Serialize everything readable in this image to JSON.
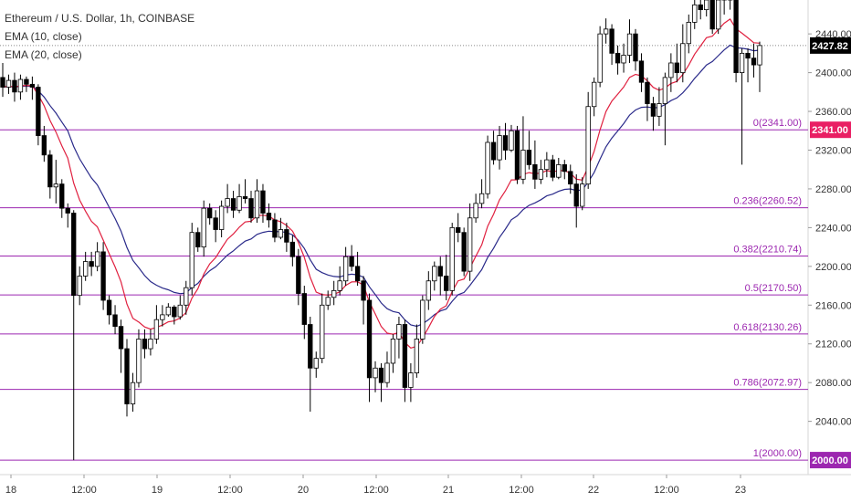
{
  "legend": {
    "title": "Ethereum / U.S. Dollar, 1h, COINBASE",
    "ema10": "EMA (10, close)",
    "ema20": "EMA (20, close)"
  },
  "colors": {
    "up": "#ffffff",
    "down": "#000000",
    "wick": "#000000",
    "ema10": "#e0203f",
    "ema20": "#2a2a8a",
    "fib": "#9c27b0",
    "fib_label_bg": "#ffffff",
    "last_price_bg": "#000000",
    "fib0_bg": "#e91e63"
  },
  "y_axis": {
    "ticks": [
      "2440.00",
      "2400.00",
      "2360.00",
      "2320.00",
      "2280.00",
      "2240.00",
      "2200.00",
      "2160.00",
      "2120.00",
      "2080.00",
      "2040.00"
    ],
    "range": [
      1985,
      2475
    ]
  },
  "x_axis": {
    "ticks": [
      "18",
      "12:00",
      "19",
      "12:00",
      "20",
      "12:00",
      "21",
      "12:00",
      "22",
      "12:00",
      "23"
    ]
  },
  "price_tags": {
    "last": "2427.82",
    "fib0": "2341.00",
    "fib1": "2000.00"
  },
  "chart_data": {
    "type": "candlestick",
    "fib_levels": [
      {
        "label": "0(2341.00)",
        "value": 2341.0
      },
      {
        "label": "0.236(2260.52)",
        "value": 2260.52
      },
      {
        "label": "0.382(2210.74)",
        "value": 2210.74
      },
      {
        "label": "0.5(2170.50)",
        "value": 2170.5
      },
      {
        "label": "0.618(2130.26)",
        "value": 2130.26
      },
      {
        "label": "0.786(2072.97)",
        "value": 2072.97
      },
      {
        "label": "1(2000.00)",
        "value": 2000.0
      }
    ],
    "candles": [
      [
        2395,
        2385,
        2410,
        2375
      ],
      [
        2385,
        2392,
        2398,
        2378
      ],
      [
        2392,
        2380,
        2400,
        2370
      ],
      [
        2380,
        2393,
        2398,
        2372
      ],
      [
        2393,
        2388,
        2396,
        2380
      ],
      [
        2388,
        2385,
        2396,
        2372
      ],
      [
        2385,
        2335,
        2388,
        2325
      ],
      [
        2335,
        2315,
        2345,
        2308
      ],
      [
        2315,
        2282,
        2320,
        2270
      ],
      [
        2282,
        2285,
        2310,
        2265
      ],
      [
        2285,
        2260,
        2290,
        2250
      ],
      [
        2260,
        2255,
        2265,
        2240
      ],
      [
        2255,
        2170,
        2258,
        2000
      ],
      [
        2170,
        2190,
        2200,
        2160
      ],
      [
        2190,
        2205,
        2215,
        2185
      ],
      [
        2205,
        2200,
        2215,
        2190
      ],
      [
        2200,
        2215,
        2225,
        2195
      ],
      [
        2215,
        2165,
        2225,
        2155
      ],
      [
        2165,
        2150,
        2170,
        2140
      ],
      [
        2150,
        2138,
        2160,
        2130
      ],
      [
        2138,
        2115,
        2145,
        2090
      ],
      [
        2115,
        2058,
        2125,
        2045
      ],
      [
        2058,
        2080,
        2090,
        2050
      ],
      [
        2080,
        2125,
        2135,
        2075
      ],
      [
        2125,
        2115,
        2135,
        2105
      ],
      [
        2115,
        2125,
        2135,
        2108
      ],
      [
        2125,
        2145,
        2160,
        2120
      ],
      [
        2145,
        2150,
        2160,
        2138
      ],
      [
        2150,
        2158,
        2162,
        2148
      ],
      [
        2158,
        2148,
        2160,
        2140
      ],
      [
        2148,
        2160,
        2170,
        2145
      ],
      [
        2160,
        2178,
        2185,
        2150
      ],
      [
        2178,
        2235,
        2245,
        2170
      ],
      [
        2235,
        2220,
        2240,
        2215
      ],
      [
        2220,
        2260,
        2268,
        2210
      ],
      [
        2260,
        2250,
        2265,
        2243
      ],
      [
        2250,
        2238,
        2258,
        2225
      ],
      [
        2238,
        2262,
        2268,
        2230
      ],
      [
        2262,
        2270,
        2285,
        2255
      ],
      [
        2270,
        2258,
        2278,
        2250
      ],
      [
        2258,
        2272,
        2285,
        2255
      ],
      [
        2272,
        2270,
        2290,
        2265
      ],
      [
        2270,
        2250,
        2278,
        2245
      ],
      [
        2250,
        2278,
        2290,
        2245
      ],
      [
        2278,
        2255,
        2285,
        2245
      ],
      [
        2255,
        2248,
        2265,
        2240
      ],
      [
        2248,
        2230,
        2255,
        2225
      ],
      [
        2230,
        2238,
        2250,
        2228
      ],
      [
        2238,
        2225,
        2245,
        2215
      ],
      [
        2225,
        2210,
        2232,
        2200
      ],
      [
        2210,
        2172,
        2218,
        2160
      ],
      [
        2172,
        2140,
        2180,
        2125
      ],
      [
        2140,
        2095,
        2148,
        2050
      ],
      [
        2095,
        2105,
        2112,
        2085
      ],
      [
        2105,
        2160,
        2172,
        2100
      ],
      [
        2160,
        2168,
        2175,
        2155
      ],
      [
        2168,
        2175,
        2185,
        2160
      ],
      [
        2175,
        2185,
        2200,
        2170
      ],
      [
        2185,
        2210,
        2220,
        2180
      ],
      [
        2210,
        2200,
        2222,
        2195
      ],
      [
        2200,
        2185,
        2215,
        2180
      ],
      [
        2185,
        2165,
        2190,
        2140
      ],
      [
        2165,
        2085,
        2172,
        2060
      ],
      [
        2085,
        2095,
        2102,
        2070
      ],
      [
        2095,
        2080,
        2100,
        2060
      ],
      [
        2080,
        2100,
        2112,
        2075
      ],
      [
        2100,
        2125,
        2130,
        2090
      ],
      [
        2125,
        2140,
        2148,
        2105
      ],
      [
        2140,
        2075,
        2145,
        2060
      ],
      [
        2075,
        2090,
        2100,
        2060
      ],
      [
        2090,
        2125,
        2140,
        2085
      ],
      [
        2125,
        2165,
        2170,
        2120
      ],
      [
        2165,
        2185,
        2195,
        2155
      ],
      [
        2185,
        2200,
        2205,
        2175
      ],
      [
        2200,
        2190,
        2210,
        2170
      ],
      [
        2190,
        2175,
        2212,
        2165
      ],
      [
        2175,
        2240,
        2245,
        2170
      ],
      [
        2240,
        2235,
        2255,
        2225
      ],
      [
        2235,
        2195,
        2240,
        2190
      ],
      [
        2195,
        2250,
        2265,
        2185
      ],
      [
        2250,
        2265,
        2275,
        2245
      ],
      [
        2265,
        2275,
        2290,
        2260
      ],
      [
        2275,
        2328,
        2335,
        2270
      ],
      [
        2328,
        2310,
        2340,
        2305
      ],
      [
        2310,
        2335,
        2345,
        2300
      ],
      [
        2335,
        2320,
        2348,
        2310
      ],
      [
        2320,
        2340,
        2346,
        2318
      ],
      [
        2340,
        2290,
        2345,
        2285
      ],
      [
        2290,
        2320,
        2355,
        2285
      ],
      [
        2320,
        2305,
        2340,
        2300
      ],
      [
        2305,
        2290,
        2330,
        2280
      ],
      [
        2290,
        2300,
        2310,
        2285
      ],
      [
        2300,
        2310,
        2318,
        2292
      ],
      [
        2310,
        2292,
        2315,
        2288
      ],
      [
        2292,
        2305,
        2312,
        2290
      ],
      [
        2305,
        2298,
        2310,
        2290
      ],
      [
        2298,
        2285,
        2305,
        2275
      ],
      [
        2285,
        2262,
        2295,
        2240
      ],
      [
        2262,
        2285,
        2292,
        2258
      ],
      [
        2285,
        2365,
        2380,
        2280
      ],
      [
        2365,
        2390,
        2395,
        2355
      ],
      [
        2390,
        2440,
        2448,
        2385
      ],
      [
        2440,
        2445,
        2456,
        2430
      ],
      [
        2445,
        2420,
        2450,
        2408
      ],
      [
        2420,
        2410,
        2428,
        2398
      ],
      [
        2410,
        2418,
        2430,
        2400
      ],
      [
        2418,
        2440,
        2455,
        2410
      ],
      [
        2440,
        2412,
        2445,
        2402
      ],
      [
        2412,
        2390,
        2420,
        2380
      ],
      [
        2390,
        2368,
        2395,
        2350
      ],
      [
        2368,
        2355,
        2375,
        2340
      ],
      [
        2355,
        2368,
        2385,
        2345
      ],
      [
        2368,
        2395,
        2400,
        2325
      ],
      [
        2395,
        2410,
        2420,
        2380
      ],
      [
        2410,
        2400,
        2430,
        2390
      ],
      [
        2400,
        2430,
        2450,
        2390
      ],
      [
        2430,
        2452,
        2460,
        2420
      ],
      [
        2452,
        2470,
        2480,
        2445
      ],
      [
        2470,
        2465,
        2478,
        2455
      ],
      [
        2465,
        2475,
        2480,
        2458
      ],
      [
        2475,
        2445,
        2480,
        2440
      ],
      [
        2445,
        2475,
        2482,
        2440
      ],
      [
        2475,
        2480,
        2485,
        2460
      ],
      [
        2480,
        2475,
        2484,
        2465
      ],
      [
        2475,
        2400,
        2482,
        2390
      ],
      [
        2400,
        2420,
        2425,
        2305
      ],
      [
        2420,
        2415,
        2425,
        2390
      ],
      [
        2415,
        2408,
        2430,
        2395
      ],
      [
        2408,
        2428,
        2432,
        2380
      ]
    ],
    "ema10": [],
    "ema20": []
  }
}
